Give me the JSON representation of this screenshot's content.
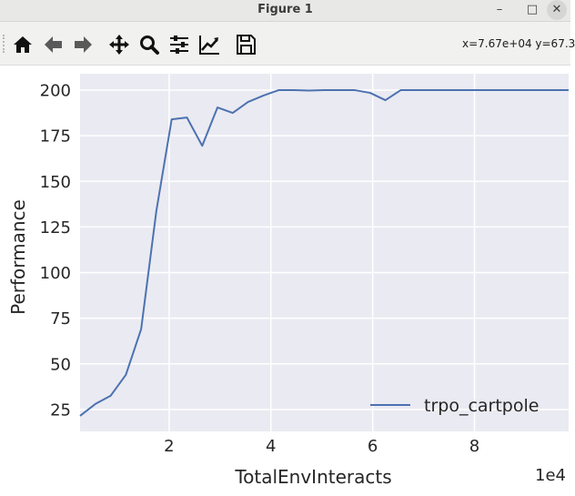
{
  "window": {
    "title": "Figure 1",
    "minimize_glyph": "–",
    "maximize_glyph": "□",
    "close_glyph": "✕"
  },
  "toolbar": {
    "tools": [
      {
        "name": "home-icon"
      },
      {
        "name": "back-icon"
      },
      {
        "name": "forward-icon"
      },
      {
        "name": "pan-icon"
      },
      {
        "name": "zoom-icon"
      },
      {
        "name": "configure-subplots-icon"
      },
      {
        "name": "edit-axis-icon"
      },
      {
        "name": "save-icon"
      }
    ],
    "coords_text": "x=7.67e+04 y=67.3"
  },
  "chart_data": {
    "type": "line",
    "xlabel": "TotalEnvInteracts",
    "ylabel": "Performance",
    "x_offset_label": "1e4",
    "xlim": [
      2500,
      98500
    ],
    "ylim": [
      13,
      209
    ],
    "x_ticks": [
      20000,
      40000,
      60000,
      80000
    ],
    "x_tick_labels": [
      "2",
      "4",
      "6",
      "8"
    ],
    "y_ticks": [
      25,
      50,
      75,
      100,
      125,
      150,
      175,
      200
    ],
    "y_tick_labels": [
      "25",
      "50",
      "75",
      "100",
      "125",
      "150",
      "175",
      "200"
    ],
    "grid": true,
    "background": "#eaeaf2",
    "legend_position": "lower-right",
    "series": [
      {
        "name": "trpo_cartpole",
        "color": "#4c72b0",
        "x": [
          2500,
          5500,
          8500,
          11500,
          14500,
          17500,
          20500,
          23500,
          26500,
          29500,
          32500,
          35500,
          38500,
          41500,
          44500,
          47500,
          50500,
          53500,
          56500,
          59500,
          62500,
          65500,
          68500,
          71500,
          74500,
          77500,
          80500,
          83500,
          86500,
          89500,
          92500,
          95500,
          98500
        ],
        "y": [
          21.5,
          28,
          32.5,
          44,
          69,
          134,
          184,
          185,
          169.5,
          190.5,
          187.5,
          193.5,
          197,
          200,
          200,
          199.8,
          200,
          200,
          200,
          198.5,
          194.5,
          200,
          200,
          200,
          200,
          200,
          200,
          200,
          200,
          200,
          200,
          200,
          200
        ]
      }
    ]
  }
}
